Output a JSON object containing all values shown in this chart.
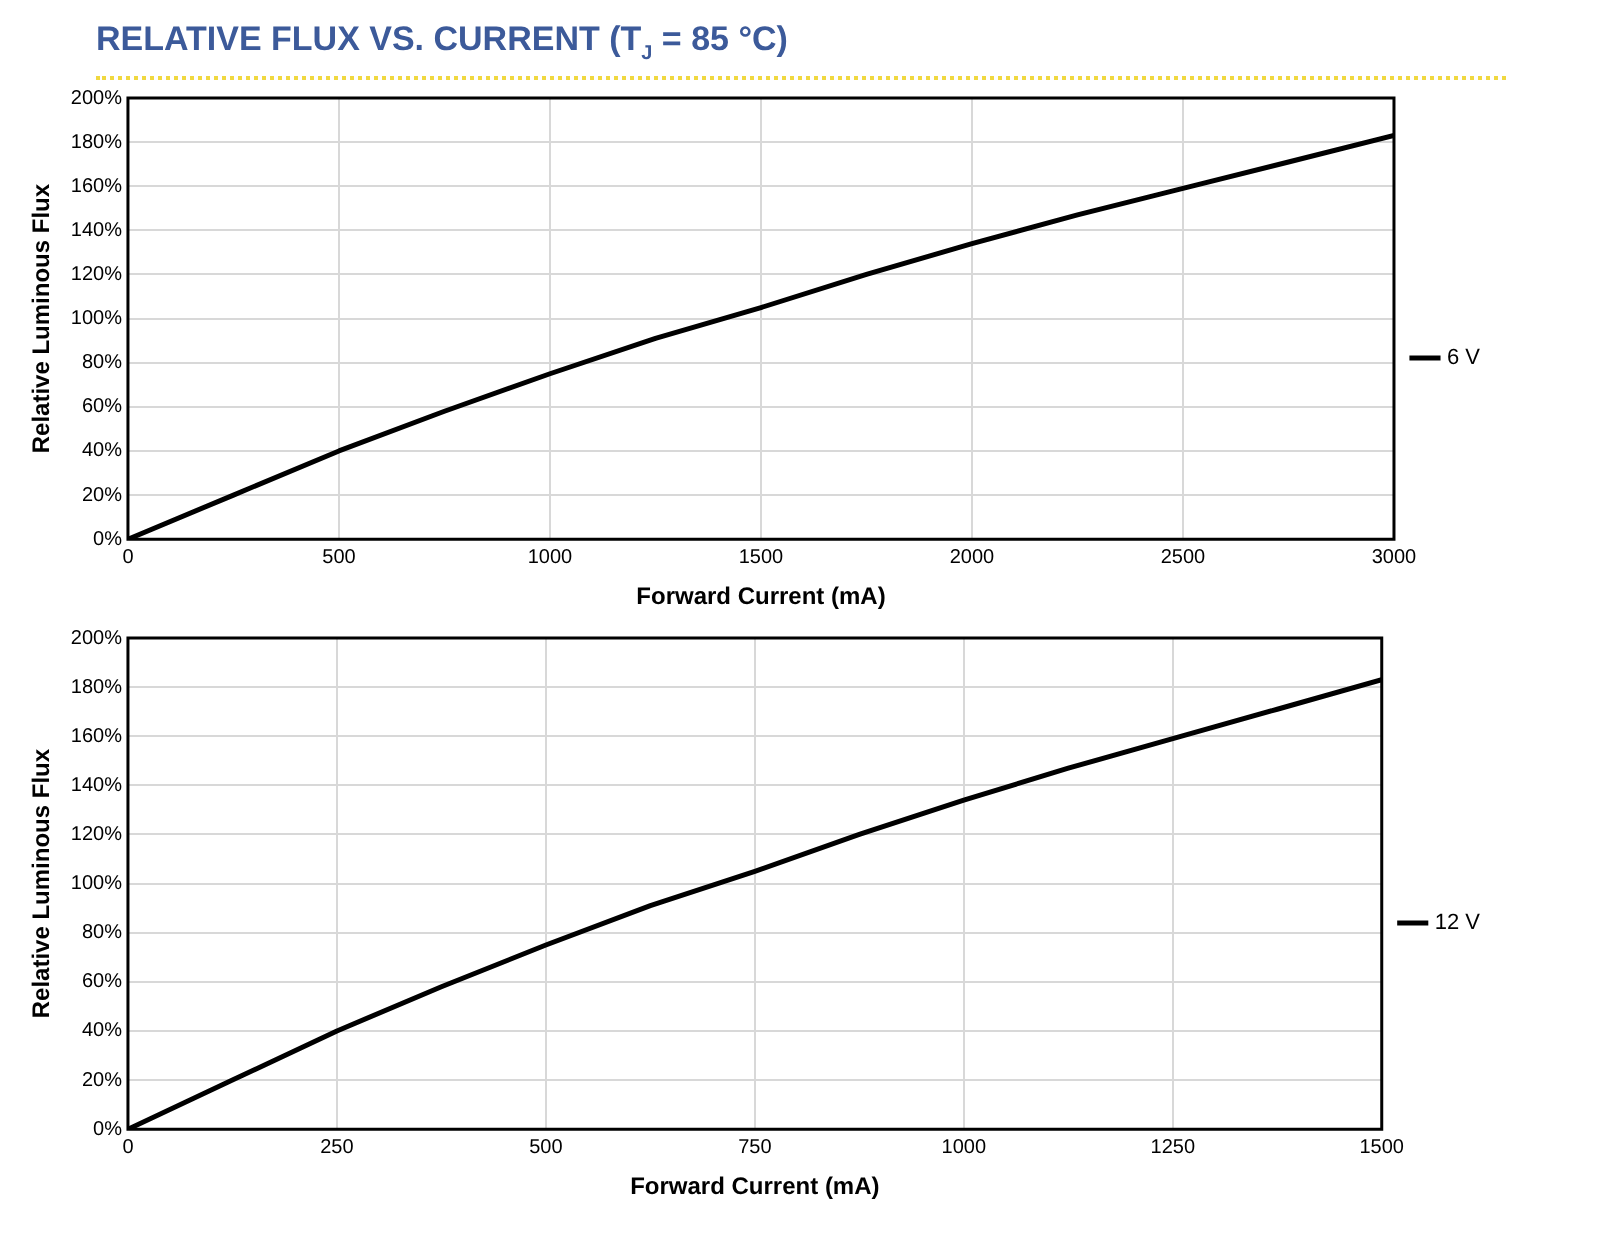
{
  "chart_data": [
    {
      "type": "line",
      "title": "RELATIVE FLUX VS. CURRENT (T$_{J}$ = 85 °C)",
      "xlabel": "Forward Current (mA)",
      "ylabel": "Relative Luminous Flux",
      "xlim": [
        0,
        3000
      ],
      "xticks": [
        0,
        500,
        1000,
        1500,
        2000,
        2500,
        3000
      ],
      "ylim": [
        0,
        200
      ],
      "yticks": [
        {
          "value": 0,
          "label": "0%"
        },
        {
          "value": 20,
          "label": "20%"
        },
        {
          "value": 40,
          "label": "40%"
        },
        {
          "value": 60,
          "label": "60%"
        },
        {
          "value": 80,
          "label": "80%"
        },
        {
          "value": 100,
          "label": "100%"
        },
        {
          "value": 120,
          "label": "120%"
        },
        {
          "value": 140,
          "label": "140%"
        },
        {
          "value": 160,
          "label": "160%"
        },
        {
          "value": 180,
          "label": "180%"
        },
        {
          "value": 200,
          "label": "200%"
        }
      ],
      "grid": true,
      "legend": "right",
      "marker": "none",
      "line_style": "solid",
      "x": [
        0,
        250,
        500,
        750,
        1000,
        1250,
        1500,
        1750,
        2000,
        2250,
        2500,
        2750,
        3000
      ],
      "series": [
        {
          "name": "6 V",
          "color": "#000000",
          "values": [
            0,
            20,
            40,
            58,
            75,
            91,
            105,
            120,
            134,
            147,
            159,
            171,
            183
          ]
        }
      ]
    },
    {
      "type": "line",
      "xlabel": "Forward Current (mA)",
      "ylabel": "Relative Luminous Flux",
      "xlim": [
        0,
        1500
      ],
      "xticks": [
        0,
        250,
        500,
        750,
        1000,
        1250,
        1500
      ],
      "ylim": [
        0,
        200
      ],
      "yticks": [
        {
          "value": 0,
          "label": "0%"
        },
        {
          "value": 20,
          "label": "20%"
        },
        {
          "value": 40,
          "label": "40%"
        },
        {
          "value": 60,
          "label": "60%"
        },
        {
          "value": 80,
          "label": "80%"
        },
        {
          "value": 100,
          "label": "100%"
        },
        {
          "value": 120,
          "label": "120%"
        },
        {
          "value": 140,
          "label": "140%"
        },
        {
          "value": 160,
          "label": "160%"
        },
        {
          "value": 180,
          "label": "180%"
        },
        {
          "value": 200,
          "label": "200%"
        }
      ],
      "grid": true,
      "legend": "right",
      "marker": "none",
      "line_style": "solid",
      "x": [
        0,
        125,
        250,
        375,
        500,
        625,
        750,
        875,
        1000,
        1125,
        1250,
        1375,
        1500
      ],
      "series": [
        {
          "name": "12 V",
          "color": "#000000",
          "values": [
            0,
            20,
            40,
            58,
            75,
            91,
            105,
            120,
            134,
            147,
            159,
            171,
            183
          ]
        }
      ]
    }
  ]
}
